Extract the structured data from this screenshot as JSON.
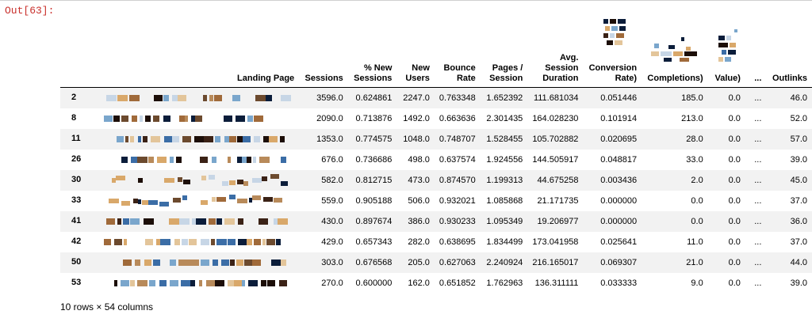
{
  "output_label": "Out[63]:",
  "columns": {
    "landing_page": "Landing Page",
    "sessions": "Sessions",
    "pct_new_sessions": "% New Sessions",
    "new_users": "New Users",
    "bounce_rate": "Bounce Rate",
    "pages_session": "Pages / Session",
    "avg_session_duration": "Avg. Session Duration",
    "conversion_rate": "Conversion Rate)",
    "completions": "Completions)",
    "value": "Value)",
    "ellipsis": "...",
    "outlinks": "Outlinks"
  },
  "rows": [
    {
      "idx": "2",
      "sessions": "3596.0",
      "pct_new": "0.624861",
      "new_users": "2247.0",
      "bounce": "0.763348",
      "pages": "1.652392",
      "duration": "111.681034",
      "conv": "0.051446",
      "compl": "185.0",
      "value": "0.0",
      "ell": "...",
      "outlinks": "46.0"
    },
    {
      "idx": "8",
      "sessions": "2090.0",
      "pct_new": "0.713876",
      "new_users": "1492.0",
      "bounce": "0.663636",
      "pages": "2.301435",
      "duration": "164.028230",
      "conv": "0.101914",
      "compl": "213.0",
      "value": "0.0",
      "ell": "...",
      "outlinks": "52.0"
    },
    {
      "idx": "11",
      "sessions": "1353.0",
      "pct_new": "0.774575",
      "new_users": "1048.0",
      "bounce": "0.748707",
      "pages": "1.528455",
      "duration": "105.702882",
      "conv": "0.020695",
      "compl": "28.0",
      "value": "0.0",
      "ell": "...",
      "outlinks": "57.0"
    },
    {
      "idx": "26",
      "sessions": "676.0",
      "pct_new": "0.736686",
      "new_users": "498.0",
      "bounce": "0.637574",
      "pages": "1.924556",
      "duration": "144.505917",
      "conv": "0.048817",
      "compl": "33.0",
      "value": "0.0",
      "ell": "...",
      "outlinks": "39.0"
    },
    {
      "idx": "30",
      "sessions": "582.0",
      "pct_new": "0.812715",
      "new_users": "473.0",
      "bounce": "0.874570",
      "pages": "1.199313",
      "duration": "44.675258",
      "conv": "0.003436",
      "compl": "2.0",
      "value": "0.0",
      "ell": "...",
      "outlinks": "45.0"
    },
    {
      "idx": "33",
      "sessions": "559.0",
      "pct_new": "0.905188",
      "new_users": "506.0",
      "bounce": "0.932021",
      "pages": "1.085868",
      "duration": "21.171735",
      "conv": "0.000000",
      "compl": "0.0",
      "value": "0.0",
      "ell": "...",
      "outlinks": "37.0"
    },
    {
      "idx": "41",
      "sessions": "430.0",
      "pct_new": "0.897674",
      "new_users": "386.0",
      "bounce": "0.930233",
      "pages": "1.095349",
      "duration": "19.206977",
      "conv": "0.000000",
      "compl": "0.0",
      "value": "0.0",
      "ell": "...",
      "outlinks": "36.0"
    },
    {
      "idx": "42",
      "sessions": "429.0",
      "pct_new": "0.657343",
      "new_users": "282.0",
      "bounce": "0.638695",
      "pages": "1.834499",
      "duration": "173.041958",
      "conv": "0.025641",
      "compl": "11.0",
      "value": "0.0",
      "ell": "...",
      "outlinks": "37.0"
    },
    {
      "idx": "50",
      "sessions": "303.0",
      "pct_new": "0.676568",
      "new_users": "205.0",
      "bounce": "0.627063",
      "pages": "2.240924",
      "duration": "216.165017",
      "conv": "0.069307",
      "compl": "21.0",
      "value": "0.0",
      "ell": "...",
      "outlinks": "44.0"
    },
    {
      "idx": "53",
      "sessions": "270.0",
      "pct_new": "0.600000",
      "new_users": "162.0",
      "bounce": "0.651852",
      "pages": "1.762963",
      "duration": "136.311111",
      "conv": "0.033333",
      "compl": "9.0",
      "value": "0.0",
      "ell": "...",
      "outlinks": "39.0"
    }
  ],
  "footer": "10 rows × 54 columns",
  "colors": {
    "output_label": "#c9302c",
    "row_stripe": "#f2f2f2"
  }
}
